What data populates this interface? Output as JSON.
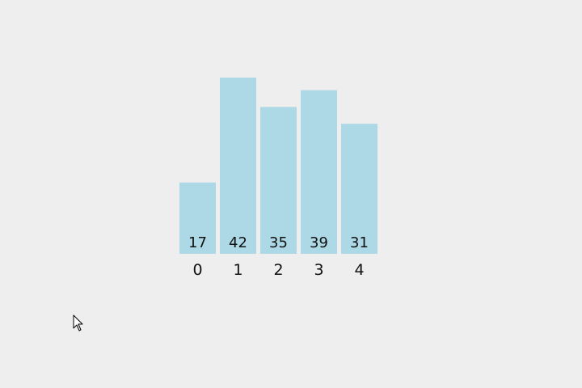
{
  "chart_data": {
    "type": "bar",
    "categories": [
      "0",
      "1",
      "2",
      "3",
      "4"
    ],
    "values": [
      17,
      42,
      35,
      39,
      31
    ],
    "title": "",
    "xlabel": "",
    "ylabel": "",
    "ylim": [
      0,
      42
    ],
    "grid": false,
    "bar_color": "#add8e6",
    "label_color": "#111111"
  },
  "colors": {
    "background": "#eeeeee"
  },
  "cursor": {
    "icon": "arrow-pointer-icon"
  }
}
